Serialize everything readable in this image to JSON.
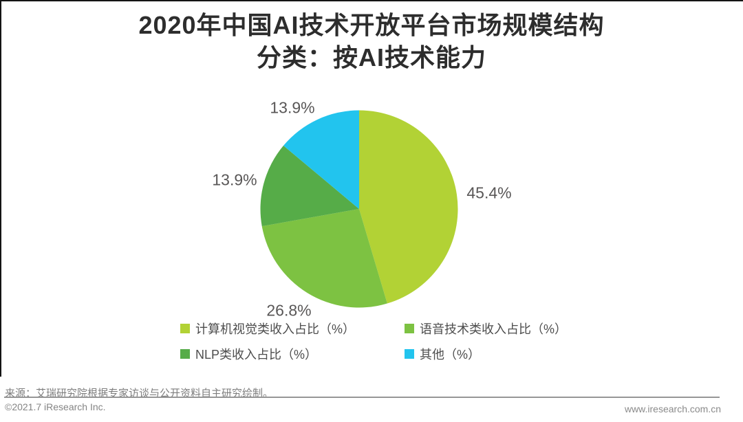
{
  "header": {
    "title_line1": "2020年中国AI技术开放平台市场规模结构",
    "title_line2": "分类：按AI技术能力"
  },
  "chart_data": {
    "type": "pie",
    "title": "2020年中国AI技术开放平台市场规模结构 分类：按AI技术能力",
    "unit": "%",
    "start_angle": "12-o'clock",
    "direction": "clockwise",
    "legend_position": "bottom",
    "slices": [
      {
        "label": "计算机视觉类收入占比（%）",
        "value": 45.4,
        "color": "#B2D235"
      },
      {
        "label": "语音技术类收入占比（%）",
        "value": 26.8,
        "color": "#7DC242"
      },
      {
        "label": "NLP类收入占比（%）",
        "value": 13.9,
        "color": "#56AC48"
      },
      {
        "label": "其他（%）",
        "value": 13.9,
        "color": "#22C4EE"
      }
    ]
  },
  "footer": {
    "source": "来源：艾瑞研究院根据专家访谈与公开资料自主研究绘制。",
    "copyright": "©2021.7 iResearch Inc.",
    "website": "www.iresearch.com.cn"
  },
  "colors": {
    "title_text": "#2d2d2d",
    "data_label_text": "#595757",
    "legend_text": "#4d4d4d",
    "footer_text": "#7d7d7d",
    "divider": "#969696",
    "edge_line": "#141414",
    "background": "#ffffff"
  }
}
